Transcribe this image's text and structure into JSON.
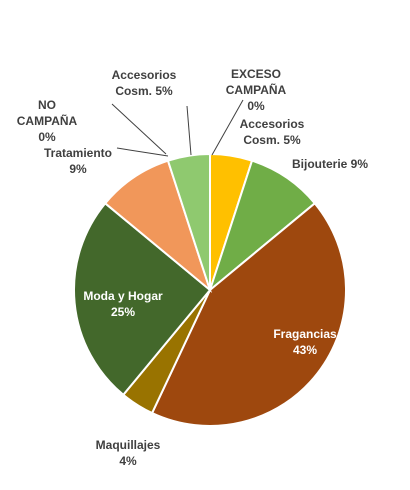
{
  "chart_data": {
    "type": "pie",
    "title": "",
    "slices": [
      {
        "name": "EXCESO CAMPAÑA",
        "value": 0,
        "label_lines": [
          "EXCESO",
          "CAMPAÑA",
          "0%"
        ],
        "color": "#ffffff"
      },
      {
        "name": "Accesorios Cosm.",
        "value": 5,
        "label_lines": [
          "Accesorios",
          "Cosm. 5%"
        ],
        "color": "#ffc000"
      },
      {
        "name": "Bijouterie",
        "value": 9,
        "label_lines": [
          "Bijouterie 9%"
        ],
        "color": "#70ad47"
      },
      {
        "name": "Fragancias",
        "value": 43,
        "label_lines": [
          "Fragancias",
          "43%"
        ],
        "color": "#9e480e"
      },
      {
        "name": "Maquillajes",
        "value": 4,
        "label_lines": [
          "Maquillajes",
          "4%"
        ],
        "color": "#997300"
      },
      {
        "name": "Moda y Hogar",
        "value": 25,
        "label_lines": [
          "Moda y Hogar",
          "25%"
        ],
        "color": "#43682b"
      },
      {
        "name": "Tratamiento",
        "value": 9,
        "label_lines": [
          "Tratamiento",
          "9%"
        ],
        "color": "#f1975a"
      },
      {
        "name": "Accesorios Cosm.",
        "value": 5,
        "label_lines": [
          "Accesorios",
          "Cosm. 5%"
        ],
        "color": "#8fc96f"
      },
      {
        "name": "NO CAMPAÑA",
        "value": 0,
        "label_lines": [
          "NO",
          "CAMPAÑA",
          "0%"
        ],
        "color": "#ffffff"
      }
    ]
  }
}
